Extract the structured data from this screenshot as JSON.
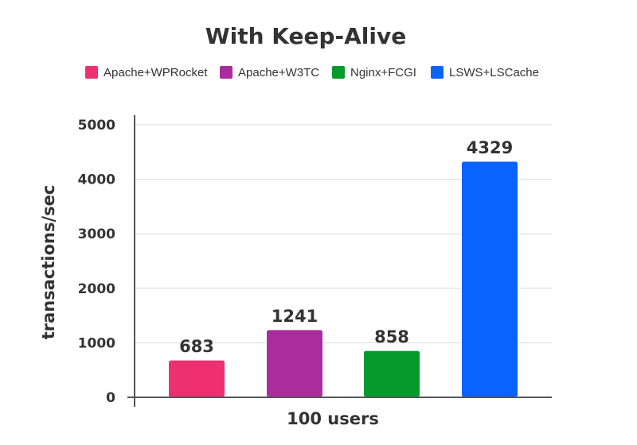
{
  "chart_data": {
    "type": "bar",
    "title": "With Keep-Alive",
    "xlabel": "100 users",
    "ylabel": "transactions/sec",
    "categories": [
      "100 users"
    ],
    "series": [
      {
        "name": "Apache+WPRocket",
        "values": [
          683
        ],
        "color": "#ee3070"
      },
      {
        "name": "Apache+W3TC",
        "values": [
          1241
        ],
        "color": "#ab2d9d"
      },
      {
        "name": "Nginx+FCGI",
        "values": [
          858
        ],
        "color": "#069a2e"
      },
      {
        "name": "LSWS+LSCache",
        "values": [
          4329
        ],
        "color": "#0a63ff"
      }
    ],
    "ylim": [
      0,
      5000
    ],
    "yticks": [
      0,
      1000,
      2000,
      3000,
      4000,
      5000
    ],
    "grid": true,
    "legend_position": "top"
  }
}
